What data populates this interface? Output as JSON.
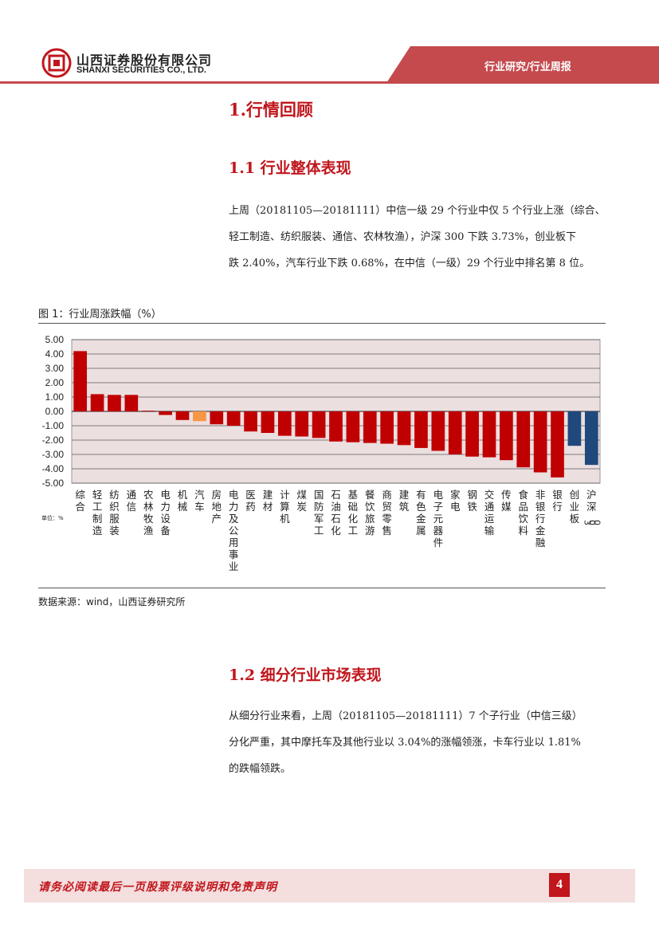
{
  "header": {
    "company_cn": "山西证券股份有限公司",
    "company_en": "SHANXI SECURITIES CO., LTD.",
    "banner": "行业研究/行业周报"
  },
  "section1": {
    "title": "1.行情回顾"
  },
  "section1_1": {
    "title": "1.1 行业整体表现",
    "lines": [
      "上周（20181105—20181111）中信一级 29 个行业中仅 5 个行业上涨（综合、",
      "轻工制造、纺织服装、通信、农林牧渔），沪深 300 下跌 3.73%，创业板下",
      "跌 2.40%，汽车行业下跌 0.68%，在中信（一级）29 个行业中排名第 8 位。"
    ]
  },
  "figure": {
    "title": "图 1：行业周涨跌幅（%）",
    "source": "数据来源：wind，山西证券研究所"
  },
  "chart_data": {
    "type": "bar",
    "unit_label": "单位：%",
    "ylim": [
      -5,
      5
    ],
    "yticks": [
      "5.00",
      "4.00",
      "3.00",
      "2.00",
      "1.00",
      "0.00",
      "-1.00",
      "-2.00",
      "-3.00",
      "-4.00",
      "-5.00"
    ],
    "grid": true,
    "categories": [
      "综合",
      "轻工制造",
      "纺织服装",
      "通信",
      "农林牧渔",
      "电力设备",
      "机械",
      "汽车",
      "房地产",
      "电力及公用事业",
      "医药",
      "建材",
      "计算机",
      "煤炭",
      "国防军工",
      "石油石化",
      "基础化工",
      "餐饮旅游",
      "商贸零售",
      "建筑",
      "有色金属",
      "电子元器件",
      "家电",
      "钢铁",
      "交通运输",
      "传媒",
      "食品饮料",
      "非银行金融",
      "银行",
      "创业板",
      "沪深300"
    ],
    "values": [
      4.2,
      1.2,
      1.15,
      1.15,
      0.05,
      -0.25,
      -0.6,
      -0.68,
      -0.9,
      -1.0,
      -1.4,
      -1.5,
      -1.7,
      -1.75,
      -1.85,
      -2.1,
      -2.15,
      -2.2,
      -2.25,
      -2.35,
      -2.55,
      -2.75,
      -3.0,
      -3.15,
      -3.2,
      -3.4,
      -3.9,
      -4.25,
      -4.6,
      -2.4,
      -3.73
    ],
    "colors": [
      "#c00000",
      "#c00000",
      "#c00000",
      "#c00000",
      "#c00000",
      "#c00000",
      "#c00000",
      "#f79646",
      "#c00000",
      "#c00000",
      "#c00000",
      "#c00000",
      "#c00000",
      "#c00000",
      "#c00000",
      "#c00000",
      "#c00000",
      "#c00000",
      "#c00000",
      "#c00000",
      "#c00000",
      "#c00000",
      "#c00000",
      "#c00000",
      "#c00000",
      "#c00000",
      "#c00000",
      "#c00000",
      "#c00000",
      "#1f497d",
      "#1f497d"
    ]
  },
  "section1_2": {
    "title": "1.2 细分行业市场表现",
    "lines": [
      "从细分行业来看，上周（20181105—20181111）7 个子行业（中信三级）",
      "分化严重，其中摩托车及其他行业以 3.04%的涨幅领涨，卡车行业以 1.81%",
      "的跌幅领跌。"
    ]
  },
  "footer": {
    "disclaimer": "请务必阅读最后一页股票评级说明和免责声明",
    "page": "4"
  }
}
